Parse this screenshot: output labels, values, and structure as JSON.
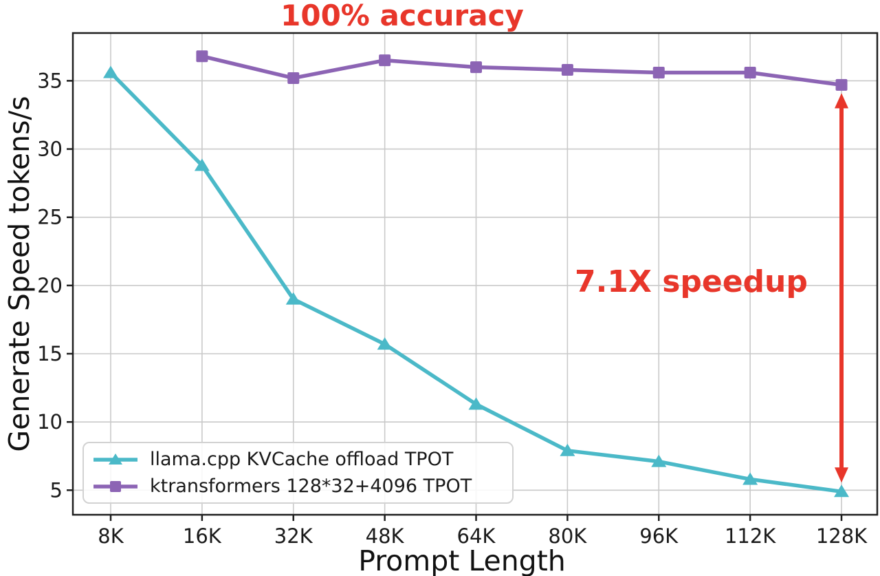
{
  "chart_data": {
    "type": "line",
    "title": "100% accuracy",
    "xlabel": "Prompt Length",
    "ylabel": "Generate Speed tokens/s",
    "categories": [
      "8K",
      "16K",
      "32K",
      "48K",
      "64K",
      "80K",
      "96K",
      "112K",
      "128K"
    ],
    "yticks": [
      5,
      10,
      15,
      20,
      25,
      30,
      35
    ],
    "ylim": [
      3.2,
      38.5
    ],
    "grid": true,
    "legend_position": "lower left",
    "series": [
      {
        "name": "llama.cpp KVCache offload TPOT",
        "marker": "triangle",
        "color": "#4BB9C8",
        "values": [
          35.6,
          28.8,
          19.0,
          15.7,
          11.3,
          7.9,
          7.1,
          5.8,
          4.9
        ]
      },
      {
        "name": "ktransformers 128*32+4096 TPOT",
        "marker": "square",
        "color": "#8C64B4",
        "values": [
          null,
          36.8,
          35.2,
          36.5,
          36.0,
          35.8,
          35.6,
          35.6,
          34.7
        ]
      }
    ],
    "annotations": [
      {
        "id": "accuracy-title",
        "text": "100% accuracy",
        "color": "#E8362A"
      },
      {
        "id": "speedup-label",
        "text": "7.1X speedup",
        "color": "#E8362A"
      },
      {
        "id": "speedup-arrow",
        "type": "vertical_double_arrow",
        "at_category": "128K",
        "from_value": 34.7,
        "to_value": 4.9,
        "color": "#E8362A"
      }
    ]
  },
  "colors": {
    "background": "#ffffff",
    "grid": "#c9c9c9",
    "frame": "#1f1f1f",
    "tick_text": "#1a1a1a"
  }
}
